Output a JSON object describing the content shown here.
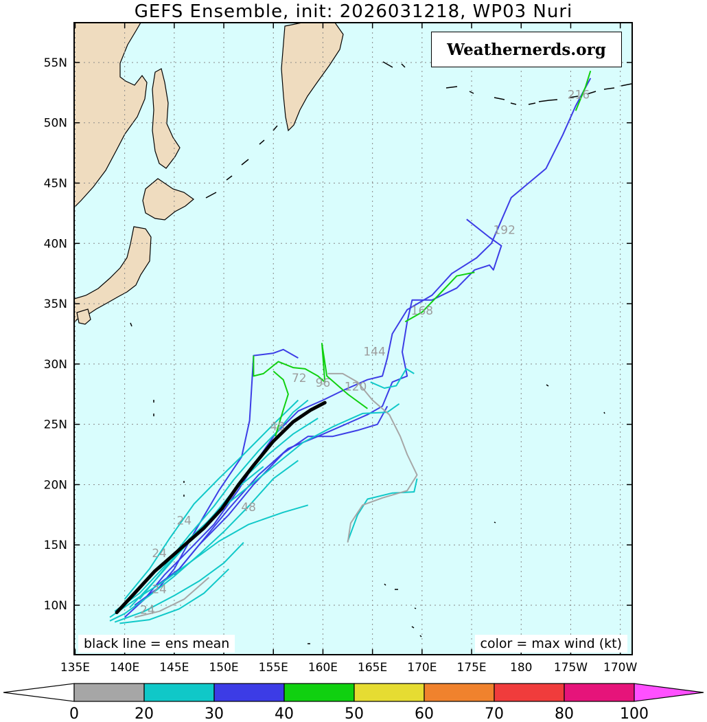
{
  "title": "GEFS Ensemble, init: 2026031218, WP03 Nuri",
  "watermark": "Weathernerds.org",
  "legend_notes": {
    "left": "black line = ens mean",
    "right": "color = max wind (kt)"
  },
  "axes": {
    "lat_labels": [
      "10N",
      "15N",
      "20N",
      "25N",
      "30N",
      "35N",
      "40N",
      "45N",
      "50N",
      "55N"
    ],
    "lat_values": [
      10,
      15,
      20,
      25,
      30,
      35,
      40,
      45,
      50,
      55
    ],
    "lon_labels": [
      "135E",
      "140E",
      "145E",
      "150E",
      "155E",
      "160E",
      "165E",
      "170E",
      "175E",
      "180",
      "175W",
      "170W"
    ],
    "lon_values": [
      135,
      140,
      145,
      150,
      155,
      160,
      165,
      170,
      175,
      180,
      185,
      190
    ],
    "lon_range": [
      134.9,
      191.2
    ],
    "lat_range": [
      5.9,
      58.3
    ],
    "grid": true
  },
  "colorbar": {
    "unit": "kt",
    "labels": [
      "0",
      "20",
      "30",
      "40",
      "50",
      "60",
      "70",
      "80",
      "100"
    ],
    "colors": [
      "#a6a6a6",
      "#10c8c8",
      "#3c3ce6",
      "#10d010",
      "#e6dc32",
      "#f0822d",
      "#f03c3c",
      "#e6147a",
      "#ff50ff"
    ]
  },
  "colors": {
    "ocean": "#d9fdfd",
    "land": "#efdcbf",
    "mean_track": "#000000"
  },
  "chart_data": {
    "type": "map-tracks",
    "storm": "WP03 Nuri",
    "init": "2026031218",
    "hour_labels": [
      {
        "text": "192",
        "lon": 178.3,
        "lat": 40.8
      },
      {
        "text": "216",
        "lon": 185.8,
        "lat": 52.0
      },
      {
        "text": "168",
        "lon": 170.0,
        "lat": 34.1
      },
      {
        "text": "144",
        "lon": 165.2,
        "lat": 30.7
      },
      {
        "text": "120",
        "lon": 163.3,
        "lat": 27.8
      },
      {
        "text": "96",
        "lon": 160.0,
        "lat": 28.1
      },
      {
        "text": "72",
        "lon": 157.6,
        "lat": 28.5
      },
      {
        "text": "48",
        "lon": 155.4,
        "lat": 24.5
      },
      {
        "text": "48",
        "lon": 152.5,
        "lat": 17.8
      },
      {
        "text": "24",
        "lon": 146.0,
        "lat": 16.7
      },
      {
        "text": "24",
        "lon": 143.5,
        "lat": 14.0
      },
      {
        "text": "24",
        "lon": 143.5,
        "lat": 11.0
      },
      {
        "text": "24",
        "lon": 142.3,
        "lat": 9.3
      }
    ],
    "mean_track": [
      [
        139.2,
        9.4
      ],
      [
        141.0,
        11.0
      ],
      [
        143.0,
        12.8
      ],
      [
        145.5,
        14.6
      ],
      [
        148.0,
        16.4
      ],
      [
        149.8,
        18.0
      ],
      [
        151.5,
        20.0
      ],
      [
        153.0,
        21.6
      ],
      [
        155.0,
        23.6
      ],
      [
        157.0,
        25.2
      ],
      [
        158.8,
        26.2
      ],
      [
        160.2,
        26.8
      ]
    ],
    "tracks": [
      {
        "color": "#3c3ce6",
        "points": [
          [
            140.0,
            9.0
          ],
          [
            142.0,
            10.5
          ],
          [
            144.0,
            12.5
          ],
          [
            146.5,
            14.6
          ],
          [
            149.0,
            16.7
          ],
          [
            151.5,
            19.6
          ],
          [
            153.5,
            22.2
          ],
          [
            155.2,
            24.2
          ],
          [
            157.5,
            26.1
          ],
          [
            160.0,
            27.0
          ],
          [
            162.0,
            27.8
          ],
          [
            164.5,
            28.7
          ],
          [
            166.0,
            29.0
          ],
          [
            166.5,
            30.5
          ],
          [
            167.0,
            32.5
          ],
          [
            168.5,
            34.5
          ],
          [
            171.0,
            35.7
          ],
          [
            173.0,
            37.5
          ],
          [
            175.5,
            38.8
          ],
          [
            177.0,
            40.0
          ],
          [
            179.0,
            43.8
          ],
          [
            182.5,
            46.2
          ],
          [
            184.2,
            49.0
          ],
          [
            185.5,
            51.4
          ],
          [
            187.0,
            53.7
          ]
        ]
      },
      {
        "color": "#3c3ce6",
        "points": [
          [
            141.0,
            10.0
          ],
          [
            143.5,
            11.5
          ],
          [
            145.0,
            13.0
          ],
          [
            147.0,
            16.0
          ],
          [
            149.5,
            19.5
          ],
          [
            151.8,
            22.3
          ],
          [
            152.6,
            25.3
          ],
          [
            153.0,
            30.7
          ],
          [
            155.0,
            30.9
          ],
          [
            156.0,
            31.2
          ],
          [
            157.5,
            30.5
          ]
        ]
      },
      {
        "color": "#3c3ce6",
        "points": [
          [
            143.0,
            11.5
          ],
          [
            145.5,
            13.0
          ],
          [
            148.0,
            15.5
          ],
          [
            150.5,
            18.0
          ],
          [
            153.5,
            20.8
          ],
          [
            156.5,
            23.0
          ],
          [
            159.5,
            24.0
          ],
          [
            162.0,
            24.9
          ],
          [
            164.5,
            25.8
          ],
          [
            166.0,
            26.5
          ],
          [
            167.0,
            28.5
          ],
          [
            168.5,
            29.0
          ],
          [
            168.0,
            31.0
          ],
          [
            168.5,
            33.5
          ],
          [
            169.0,
            35.3
          ],
          [
            171.0,
            35.3
          ],
          [
            173.5,
            36.3
          ],
          [
            175.3,
            37.8
          ],
          [
            176.8,
            38.2
          ],
          [
            177.2,
            37.8
          ],
          [
            178.0,
            39.8
          ],
          [
            176.8,
            40.5
          ],
          [
            174.5,
            42.0
          ]
        ]
      },
      {
        "color": "#3c3ce6",
        "points": [
          [
            145.0,
            12.5
          ],
          [
            147.5,
            15.0
          ],
          [
            150.5,
            17.5
          ],
          [
            153.0,
            20.0
          ],
          [
            156.0,
            22.6
          ],
          [
            158.5,
            24.0
          ],
          [
            161.0,
            24.0
          ],
          [
            163.5,
            24.5
          ],
          [
            165.5,
            25.0
          ],
          [
            166.5,
            26.5
          ]
        ]
      },
      {
        "color": "#10c8c8",
        "points": [
          [
            138.5,
            8.7
          ],
          [
            140.0,
            9.3
          ],
          [
            142.5,
            10.8
          ],
          [
            145.0,
            12.4
          ],
          [
            147.5,
            14.2
          ],
          [
            150.0,
            16.1
          ],
          [
            152.5,
            18.2
          ],
          [
            155.0,
            20.5
          ],
          [
            157.5,
            22.0
          ]
        ]
      },
      {
        "color": "#10c8c8",
        "points": [
          [
            138.5,
            9.0
          ],
          [
            141.5,
            10.7
          ],
          [
            144.0,
            12.0
          ],
          [
            146.5,
            13.5
          ],
          [
            149.5,
            15.3
          ],
          [
            152.5,
            16.7
          ],
          [
            156.0,
            17.7
          ],
          [
            158.5,
            18.3
          ]
        ]
      },
      {
        "color": "#10c8c8",
        "points": [
          [
            139.0,
            8.6
          ],
          [
            142.0,
            9.5
          ],
          [
            145.0,
            10.8
          ],
          [
            147.5,
            12.0
          ],
          [
            150.0,
            13.5
          ],
          [
            152.0,
            15.2
          ]
        ]
      },
      {
        "color": "#10c8c8",
        "points": [
          [
            139.5,
            8.5
          ],
          [
            142.5,
            8.8
          ],
          [
            145.5,
            9.7
          ],
          [
            148.0,
            11.0
          ],
          [
            150.5,
            13.0
          ]
        ]
      },
      {
        "color": "#10c8c8",
        "points": [
          [
            139.0,
            9.5
          ],
          [
            141.5,
            11.0
          ],
          [
            144.0,
            13.2
          ],
          [
            146.5,
            15.8
          ],
          [
            149.0,
            18.2
          ],
          [
            151.0,
            20.4
          ],
          [
            153.5,
            22.8
          ],
          [
            155.5,
            24.5
          ],
          [
            157.0,
            26.0
          ],
          [
            158.5,
            27.0
          ]
        ]
      },
      {
        "color": "#10c8c8",
        "points": [
          [
            140.0,
            10.5
          ],
          [
            142.5,
            13.0
          ],
          [
            144.5,
            15.5
          ],
          [
            147.0,
            18.4
          ],
          [
            149.5,
            20.5
          ],
          [
            152.0,
            22.5
          ],
          [
            155.0,
            25.0
          ],
          [
            157.5,
            27.0
          ]
        ]
      },
      {
        "color": "#10c8c8",
        "points": [
          [
            140.5,
            9.8
          ],
          [
            143.0,
            12.0
          ],
          [
            146.0,
            14.8
          ],
          [
            149.0,
            17.5
          ],
          [
            152.0,
            19.5
          ],
          [
            155.0,
            21.5
          ],
          [
            158.0,
            23.5
          ],
          [
            161.0,
            24.8
          ],
          [
            164.0,
            25.9
          ],
          [
            166.5,
            26.0
          ],
          [
            167.7,
            26.7
          ]
        ]
      },
      {
        "color": "#10c8c8",
        "points": [
          [
            141.5,
            10.5
          ],
          [
            144.0,
            13.0
          ],
          [
            146.5,
            15.5
          ],
          [
            149.5,
            17.8
          ],
          [
            152.0,
            20.5
          ],
          [
            154.5,
            22.5
          ],
          [
            157.0,
            24.2
          ],
          [
            159.5,
            25.5
          ]
        ]
      },
      {
        "color": "#10c8c8",
        "points": [
          [
            143.5,
            13.0
          ],
          [
            146.0,
            15.0
          ],
          [
            148.5,
            17.0
          ],
          [
            151.0,
            19.5
          ],
          [
            154.0,
            21.5
          ]
        ]
      },
      {
        "color": "#10c8c8",
        "points": [
          [
            162.5,
            15.3
          ],
          [
            163.5,
            17.5
          ],
          [
            164.5,
            18.8
          ],
          [
            167.0,
            19.3
          ],
          [
            169.2,
            19.4
          ],
          [
            169.5,
            20.5
          ]
        ]
      },
      {
        "color": "#a6a6a6",
        "points": [
          [
            162.5,
            15.2
          ],
          [
            162.8,
            16.8
          ],
          [
            164.0,
            18.3
          ],
          [
            166.0,
            18.9
          ],
          [
            168.5,
            19.5
          ],
          [
            169.5,
            20.8
          ],
          [
            168.5,
            22.5
          ],
          [
            167.8,
            24.0
          ],
          [
            166.7,
            25.8
          ],
          [
            165.0,
            27.0
          ],
          [
            163.5,
            28.5
          ],
          [
            162.0,
            29.2
          ],
          [
            160.5,
            29.2
          ]
        ]
      },
      {
        "color": "#a6a6a6",
        "points": [
          [
            141.0,
            9.0
          ],
          [
            143.5,
            9.5
          ],
          [
            146.0,
            10.5
          ],
          [
            148.5,
            12.3
          ]
        ]
      },
      {
        "color": "#10d010",
        "points": [
          [
            153.0,
            30.7
          ],
          [
            153.0,
            29.0
          ],
          [
            154.0,
            29.2
          ],
          [
            155.5,
            30.2
          ],
          [
            157.0,
            29.7
          ],
          [
            158.2,
            29.6
          ],
          [
            159.5,
            29.0
          ],
          [
            160.2,
            28.5
          ],
          [
            159.9,
            31.7
          ],
          [
            160.4,
            29.0
          ],
          [
            162.5,
            27.5
          ],
          [
            164.5,
            26.3
          ]
        ]
      },
      {
        "color": "#10d010",
        "points": [
          [
            155.0,
            29.4
          ],
          [
            156.0,
            28.7
          ],
          [
            156.5,
            27.5
          ],
          [
            156.0,
            26.2
          ],
          [
            155.2,
            24.0
          ]
        ]
      },
      {
        "color": "#10d010",
        "points": [
          [
            168.3,
            33.5
          ],
          [
            170.0,
            34.3
          ],
          [
            172.0,
            36.0
          ],
          [
            173.5,
            37.3
          ],
          [
            175.3,
            37.6
          ]
        ]
      },
      {
        "color": "#10d010",
        "points": [
          [
            185.5,
            51.0
          ],
          [
            186.5,
            53.0
          ],
          [
            187.0,
            54.3
          ]
        ]
      },
      {
        "color": "#10c8c8",
        "points": [
          [
            164.8,
            28.5
          ],
          [
            166.2,
            28.0
          ],
          [
            167.4,
            28.2
          ],
          [
            168.4,
            29.6
          ],
          [
            169.2,
            29.2
          ]
        ]
      }
    ]
  }
}
